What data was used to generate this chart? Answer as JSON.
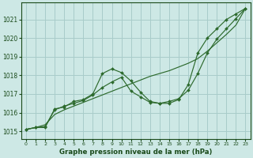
{
  "xlabel": "Graphe pression niveau de la mer (hPa)",
  "background_color": "#cde8e5",
  "grid_color": "#a8ccca",
  "line_color": "#2d6a2d",
  "text_color": "#1a4a1a",
  "xlim": [
    -0.5,
    23.5
  ],
  "ylim": [
    1014.6,
    1021.9
  ],
  "yticks": [
    1015,
    1016,
    1017,
    1018,
    1019,
    1020,
    1021
  ],
  "xticks": [
    0,
    1,
    2,
    3,
    4,
    5,
    6,
    7,
    8,
    9,
    10,
    11,
    12,
    13,
    14,
    15,
    16,
    17,
    18,
    19,
    20,
    21,
    22,
    23
  ],
  "series_straight": {
    "x": [
      0,
      1,
      2,
      3,
      4,
      5,
      6,
      7,
      8,
      9,
      10,
      11,
      12,
      13,
      14,
      15,
      16,
      17,
      18,
      19,
      20,
      21,
      22,
      23
    ],
    "y": [
      1015.1,
      1015.2,
      1015.35,
      1015.9,
      1016.15,
      1016.35,
      1016.55,
      1016.75,
      1016.95,
      1017.15,
      1017.35,
      1017.55,
      1017.75,
      1017.95,
      1018.1,
      1018.25,
      1018.45,
      1018.65,
      1018.9,
      1019.3,
      1019.75,
      1020.2,
      1020.7,
      1021.6
    ]
  },
  "series_wavy1": {
    "x": [
      0,
      1,
      2,
      3,
      4,
      5,
      6,
      7,
      8,
      9,
      10,
      11,
      12,
      13,
      14,
      15,
      16,
      17,
      18,
      19,
      20,
      21,
      22,
      23
    ],
    "y": [
      1015.1,
      1015.2,
      1015.2,
      1016.2,
      1016.3,
      1016.6,
      1016.7,
      1017.0,
      1018.1,
      1018.35,
      1018.15,
      1017.7,
      1017.1,
      1016.6,
      1016.5,
      1016.5,
      1016.7,
      1017.5,
      1019.2,
      1020.0,
      1020.5,
      1021.0,
      1021.3,
      1021.6
    ]
  },
  "series_wavy2": {
    "x": [
      0,
      1,
      2,
      3,
      4,
      5,
      6,
      7,
      8,
      9,
      10,
      11,
      12,
      13,
      14,
      15,
      16,
      17,
      18,
      19,
      20,
      21,
      22,
      23
    ],
    "y": [
      1015.1,
      1015.2,
      1015.25,
      1016.15,
      1016.35,
      1016.5,
      1016.65,
      1016.95,
      1017.35,
      1017.65,
      1017.9,
      1017.15,
      1016.85,
      1016.55,
      1016.5,
      1016.6,
      1016.75,
      1017.2,
      1018.1,
      1019.2,
      1019.95,
      1020.5,
      1021.05,
      1021.6
    ]
  }
}
